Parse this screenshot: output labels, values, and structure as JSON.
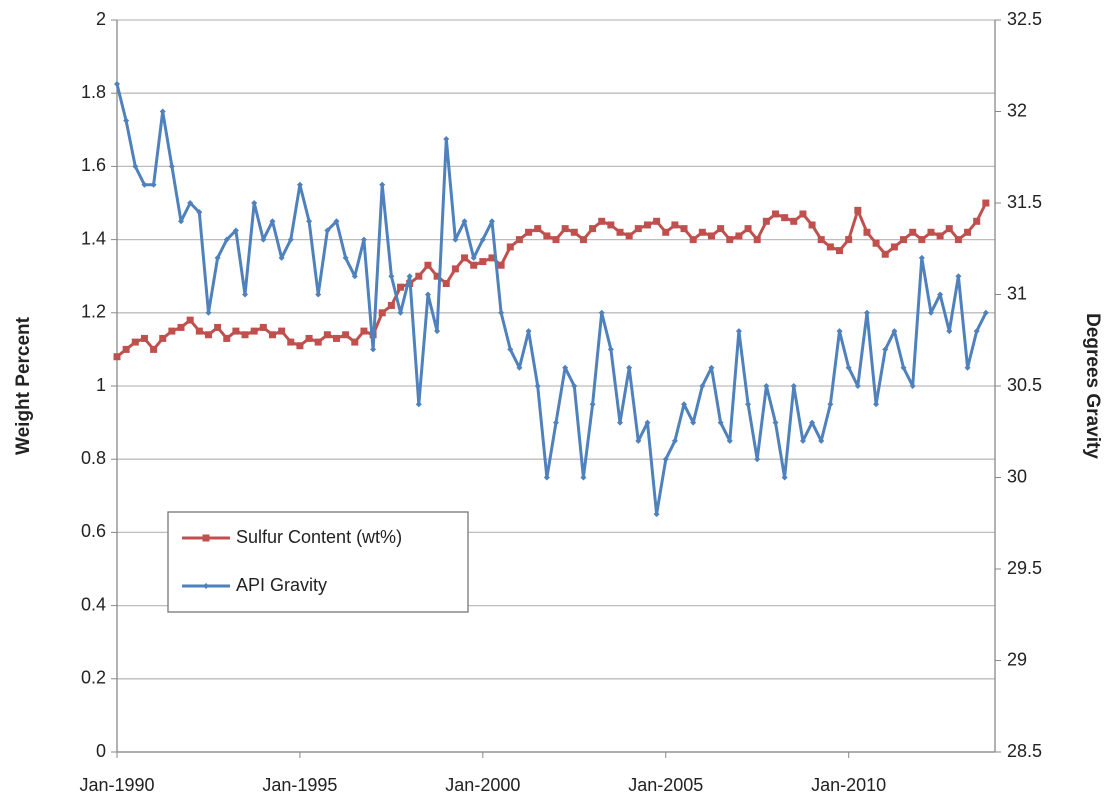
{
  "chart_data": {
    "type": "line",
    "y_label": "Weight Percent",
    "y2_label": "Degrees Gravity",
    "x": [
      "Jan-1990",
      "Apr-1990",
      "Jul-1990",
      "Oct-1990",
      "Jan-1991",
      "Apr-1991",
      "Jul-1991",
      "Oct-1991",
      "Jan-1992",
      "Apr-1992",
      "Jul-1992",
      "Oct-1992",
      "Jan-1993",
      "Apr-1993",
      "Jul-1993",
      "Oct-1993",
      "Jan-1994",
      "Apr-1994",
      "Jul-1994",
      "Oct-1994",
      "Jan-1995",
      "Apr-1995",
      "Jul-1995",
      "Oct-1995",
      "Jan-1996",
      "Apr-1996",
      "Jul-1996",
      "Oct-1996",
      "Jan-1997",
      "Apr-1997",
      "Jul-1997",
      "Oct-1997",
      "Jan-1998",
      "Apr-1998",
      "Jul-1998",
      "Oct-1998",
      "Jan-1999",
      "Apr-1999",
      "Jul-1999",
      "Oct-1999",
      "Jan-2000",
      "Apr-2000",
      "Jul-2000",
      "Oct-2000",
      "Jan-2001",
      "Apr-2001",
      "Jul-2001",
      "Oct-2001",
      "Jan-2002",
      "Apr-2002",
      "Jul-2002",
      "Oct-2002",
      "Jan-2003",
      "Apr-2003",
      "Jul-2003",
      "Oct-2003",
      "Jan-2004",
      "Apr-2004",
      "Jul-2004",
      "Oct-2004",
      "Jan-2005",
      "Apr-2005",
      "Jul-2005",
      "Oct-2005",
      "Jan-2006",
      "Apr-2006",
      "Jul-2006",
      "Oct-2006",
      "Jan-2007",
      "Apr-2007",
      "Jul-2007",
      "Oct-2007",
      "Jan-2008",
      "Apr-2008",
      "Jul-2008",
      "Oct-2008",
      "Jan-2009",
      "Apr-2009",
      "Jul-2009",
      "Oct-2009",
      "Jan-2010",
      "Apr-2010",
      "Jul-2010",
      "Oct-2010",
      "Jan-2011",
      "Apr-2011",
      "Jul-2011",
      "Oct-2011",
      "Jan-2012",
      "Apr-2012",
      "Jul-2012",
      "Oct-2012",
      "Jan-2013",
      "Apr-2013",
      "Jul-2013",
      "Oct-2013"
    ],
    "series": [
      {
        "name": "Sulfur Content (wt%)",
        "color": "#c0504d",
        "marker": "square",
        "values": [
          1.08,
          1.1,
          1.12,
          1.13,
          1.1,
          1.13,
          1.15,
          1.16,
          1.18,
          1.15,
          1.14,
          1.16,
          1.13,
          1.15,
          1.14,
          1.15,
          1.16,
          1.14,
          1.15,
          1.12,
          1.11,
          1.13,
          1.12,
          1.14,
          1.13,
          1.14,
          1.12,
          1.15,
          1.14,
          1.2,
          1.22,
          1.27,
          1.28,
          1.3,
          1.33,
          1.3,
          1.28,
          1.32,
          1.35,
          1.33,
          1.34,
          1.35,
          1.33,
          1.38,
          1.4,
          1.42,
          1.43,
          1.41,
          1.4,
          1.43,
          1.42,
          1.4,
          1.43,
          1.45,
          1.44,
          1.42,
          1.41,
          1.43,
          1.44,
          1.45,
          1.42,
          1.44,
          1.43,
          1.4,
          1.42,
          1.41,
          1.43,
          1.4,
          1.41,
          1.43,
          1.4,
          1.45,
          1.47,
          1.46,
          1.45,
          1.47,
          1.44,
          1.4,
          1.38,
          1.37,
          1.4,
          1.48,
          1.42,
          1.39,
          1.36,
          1.38,
          1.4,
          1.42,
          1.4,
          1.42,
          1.41,
          1.43,
          1.4,
          1.42,
          1.45,
          1.5
        ]
      },
      {
        "name": "API Gravity",
        "color": "#4f81bd",
        "marker": "diamond",
        "axis": "y2",
        "values": [
          32.15,
          31.95,
          31.7,
          31.6,
          31.6,
          32.0,
          31.7,
          31.4,
          31.5,
          31.45,
          30.9,
          31.2,
          31.3,
          31.35,
          31.0,
          31.5,
          31.3,
          31.4,
          31.2,
          31.3,
          31.6,
          31.4,
          31.0,
          31.35,
          31.4,
          31.2,
          31.1,
          31.3,
          30.7,
          31.6,
          31.1,
          30.9,
          31.1,
          30.4,
          31.0,
          30.8,
          31.85,
          31.3,
          31.4,
          31.2,
          31.3,
          31.4,
          30.9,
          30.7,
          30.6,
          30.8,
          30.5,
          30.0,
          30.3,
          30.6,
          30.5,
          30.0,
          30.4,
          30.9,
          30.7,
          30.3,
          30.6,
          30.2,
          30.3,
          29.8,
          30.1,
          30.2,
          30.4,
          30.3,
          30.5,
          30.6,
          30.3,
          30.2,
          30.8,
          30.4,
          30.1,
          30.5,
          30.3,
          30.0,
          30.5,
          30.2,
          30.3,
          30.2,
          30.4,
          30.8,
          30.6,
          30.5,
          30.9,
          30.4,
          30.7,
          30.8,
          30.6,
          30.5,
          31.2,
          30.9,
          31.0,
          30.8,
          31.1,
          30.6,
          30.8,
          30.9
        ]
      }
    ],
    "xlim": [
      "Jan-1990",
      "Jan-2014"
    ],
    "xticks": [
      "Jan-1990",
      "Jan-1995",
      "Jan-2000",
      "Jan-2005",
      "Jan-2010"
    ],
    "ylim": [
      0,
      2
    ],
    "yticks": [
      0,
      0.2,
      0.4,
      0.6,
      0.8,
      1,
      1.2,
      1.4,
      1.6,
      1.8,
      2
    ],
    "y2lim": [
      28.5,
      32.5
    ],
    "y2ticks": [
      28.5,
      29,
      29.5,
      30,
      30.5,
      31,
      31.5,
      32,
      32.5
    ],
    "grid": true,
    "legend": "lower left"
  }
}
